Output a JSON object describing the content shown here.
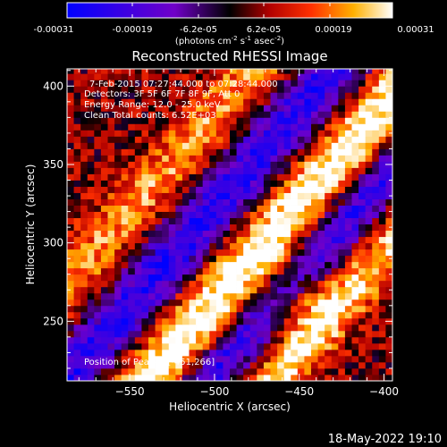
{
  "colorbar": {
    "ticks": [
      "-0.00031",
      "-0.00019",
      "-6.2e-05",
      "6.2e-05",
      "0.00019",
      "0.00031"
    ],
    "units_main": "(photons cm",
    "units_exp1": "-2",
    "units_mid": " s",
    "units_exp2": "-1",
    "units_end": " asec",
    "units_exp3": "-2",
    "units_close": ")"
  },
  "info": {
    "time_range": "7-Feb-2015 07:27:44.000 to 07:28:44.000",
    "detectors": "Detectors: 3F 5F 6F 7F 8F 9F, Att 0",
    "energy": "Energy Range: 12.0 - 25.0 keV",
    "clean": "Clean     Total counts: 6.52E+03",
    "peak": "Position of Peak = [-451,266]"
  },
  "footer": {
    "timestamp": "18-May-2022 19:10"
  },
  "chart_data": {
    "type": "heatmap",
    "title": "Reconstructed RHESSI Image",
    "xlabel": "Heliocentric X (arcsec)",
    "ylabel": "Heliocentric Y (arcsec)",
    "xlim": [
      -587,
      -395
    ],
    "ylim": [
      212,
      411
    ],
    "xticks": [
      -550,
      -500,
      -450,
      -400
    ],
    "yticks": [
      250,
      300,
      350,
      400
    ],
    "colormap": "red-temperature",
    "value_range": [
      -0.00031,
      0.00031
    ],
    "peak_position": [
      -451,
      266
    ],
    "colors": {
      "background": "#000000",
      "text": "#ffffff"
    }
  }
}
